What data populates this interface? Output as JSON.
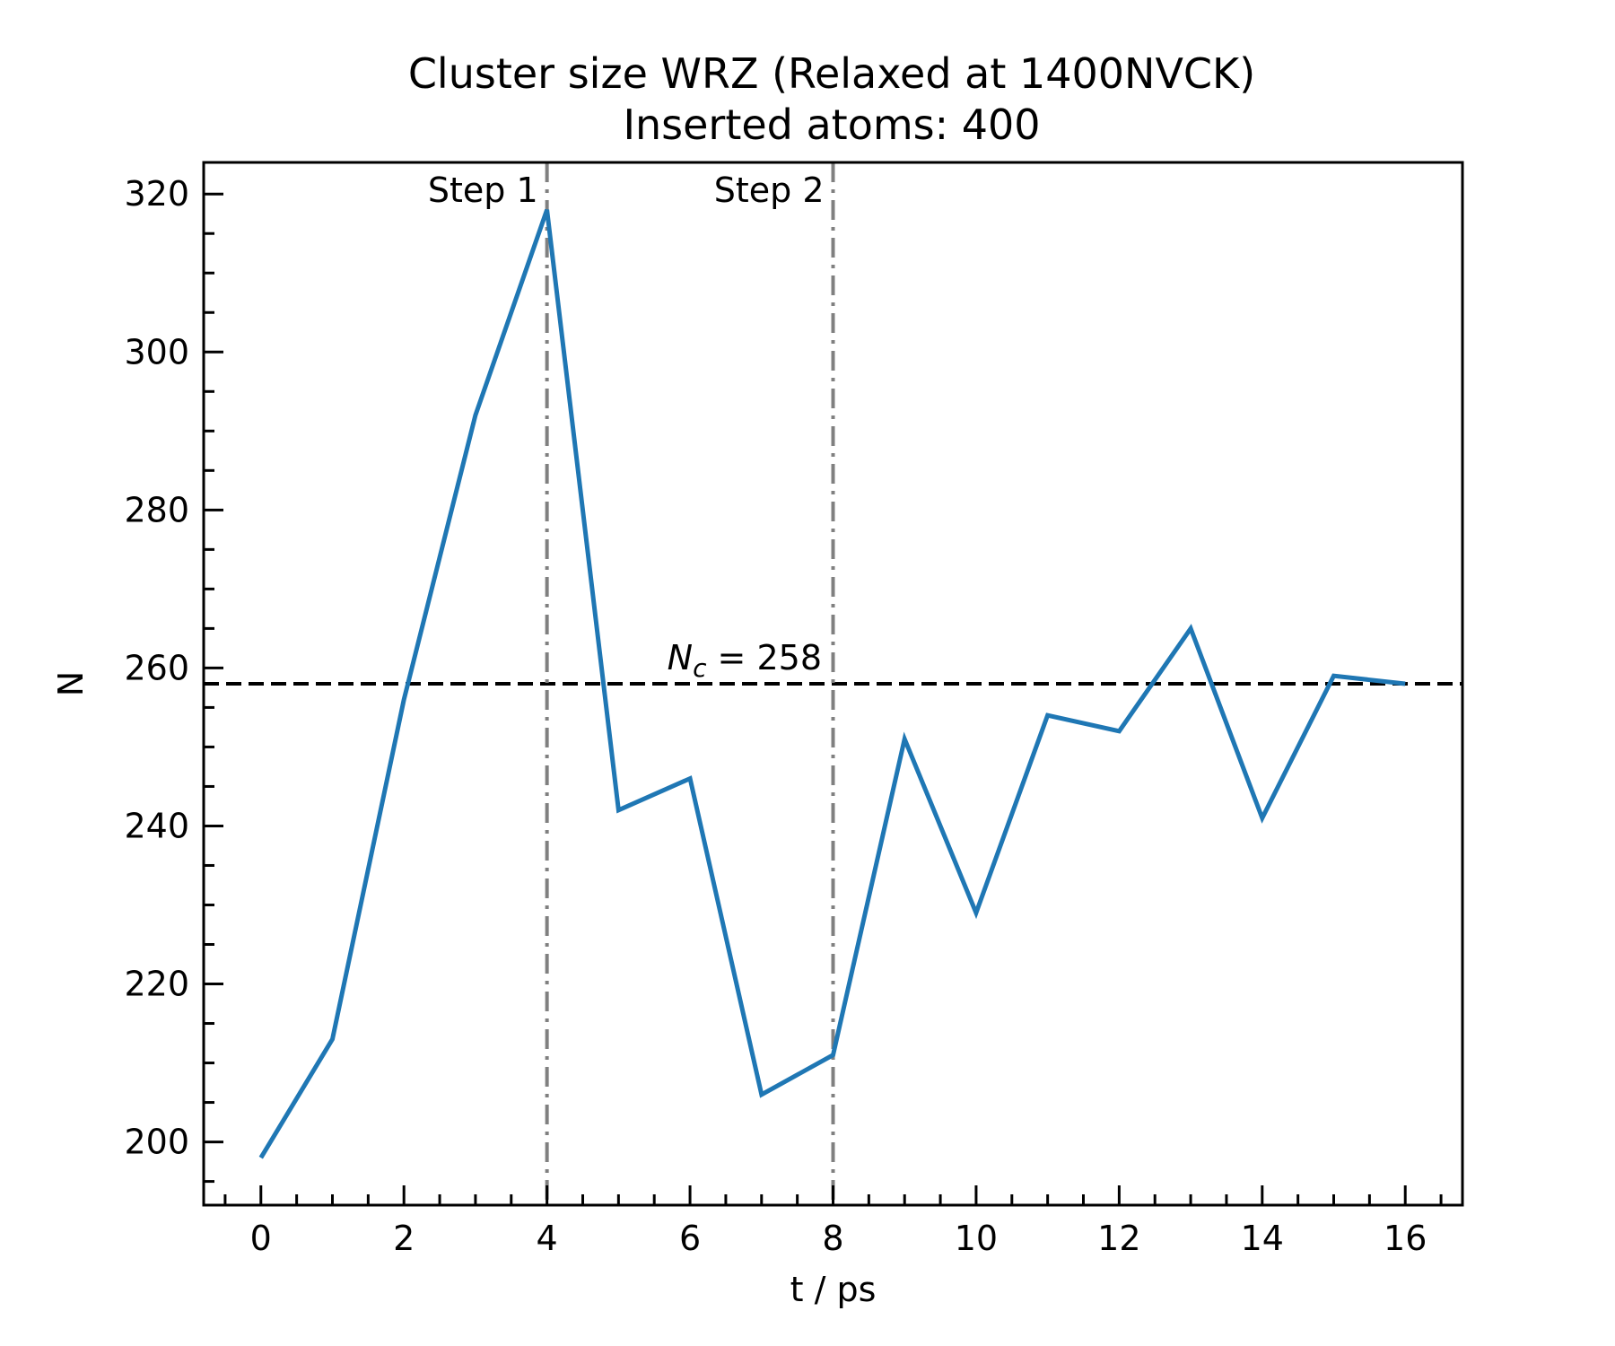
{
  "chart_data": {
    "type": "line",
    "title": "Cluster size WRZ (Relaxed at 1400NVCK)",
    "subtitle": "Inserted atoms: 400",
    "xlabel": "t / ps",
    "ylabel": "N",
    "xlim": [
      -0.8,
      16.8
    ],
    "ylim": [
      192,
      324
    ],
    "x_ticks": [
      0,
      2,
      4,
      6,
      8,
      10,
      12,
      14,
      16
    ],
    "y_ticks": [
      200,
      220,
      240,
      260,
      280,
      300,
      320
    ],
    "x_tick_labels": [
      "0",
      "2",
      "4",
      "6",
      "8",
      "10",
      "12",
      "14",
      "16"
    ],
    "y_tick_labels": [
      "200",
      "220",
      "240",
      "260",
      "280",
      "300",
      "320"
    ],
    "grid": false,
    "series": [
      {
        "color": "#1f77b4",
        "x": [
          0,
          1,
          2,
          3,
          4,
          5,
          6,
          7,
          8,
          9,
          10,
          11,
          12,
          13,
          14,
          15,
          16
        ],
        "y": [
          198,
          213,
          256,
          292,
          318,
          242,
          246,
          206,
          211,
          251,
          229,
          254,
          252,
          265,
          241,
          259,
          258
        ]
      }
    ],
    "reference_lines": [
      {
        "orientation": "horizontal",
        "value": 258,
        "style": "dashed",
        "color": "#000000",
        "label_main": "N",
        "label_sub": "c",
        "label_rest": " = 258"
      },
      {
        "orientation": "vertical",
        "value": 4,
        "style": "dashdot",
        "color": "#808080",
        "label": "Step 1"
      },
      {
        "orientation": "vertical",
        "value": 8,
        "style": "dashdot",
        "color": "#808080",
        "label": "Step 2"
      }
    ]
  }
}
